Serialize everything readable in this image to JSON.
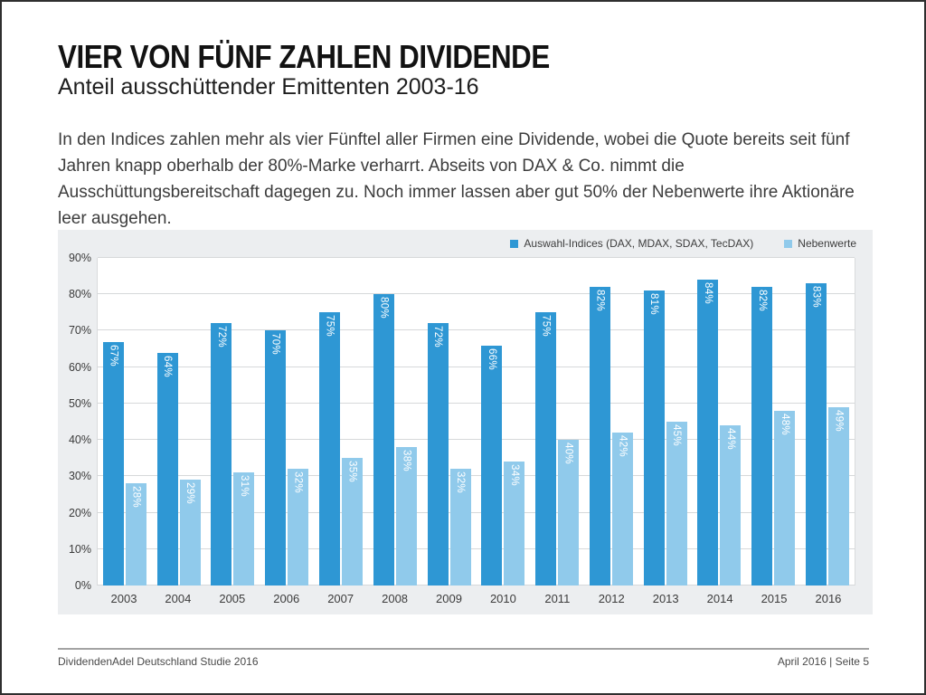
{
  "page": {
    "title": "VIER VON FÜNF ZAHLEN DIVIDENDE",
    "subtitle": "Anteil ausschüttender Emittenten 2003-16",
    "body_text": "In den Indices zahlen mehr als vier Fünftel aller Firmen eine Dividende, wobei die Quote bereits seit fünf Jahren knapp oberhalb der 80%-Marke verharrt. Abseits von DAX & Co. nimmt die Ausschüttungsbereitschaft dagegen zu. Noch immer lassen aber gut 50% der Nebenwerte ihre Aktionäre leer ausgehen.",
    "footer_left": "DividendenAdel Deutschland Studie 2016",
    "footer_right": "April 2016 | Seite 5"
  },
  "chart_data": {
    "type": "bar",
    "title": "",
    "categories": [
      "2003",
      "2004",
      "2005",
      "2006",
      "2007",
      "2008",
      "2009",
      "2010",
      "2011",
      "2012",
      "2013",
      "2014",
      "2015",
      "2016"
    ],
    "series": [
      {
        "id": "auswahl-indices",
        "name": "Auswahl-Indices (DAX, MDAX, SDAX, TecDAX)",
        "color": "#2e97d4",
        "values": [
          67,
          64,
          72,
          70,
          75,
          80,
          72,
          66,
          75,
          82,
          81,
          84,
          82,
          83
        ]
      },
      {
        "id": "nebenwerte",
        "name": "Nebenwerte",
        "color": "#90caeb",
        "values": [
          28,
          29,
          31,
          32,
          35,
          38,
          32,
          34,
          40,
          42,
          45,
          44,
          48,
          49
        ]
      }
    ],
    "ylim": [
      0,
      90
    ],
    "ytick_step": 10,
    "ytick_suffix": "%",
    "data_label_suffix": "%",
    "grid": "horizontal",
    "legend_position": "top-right",
    "plot_bg": "#ffffff",
    "chart_bg": "#eceef0",
    "grid_color": "#d6d8da"
  }
}
